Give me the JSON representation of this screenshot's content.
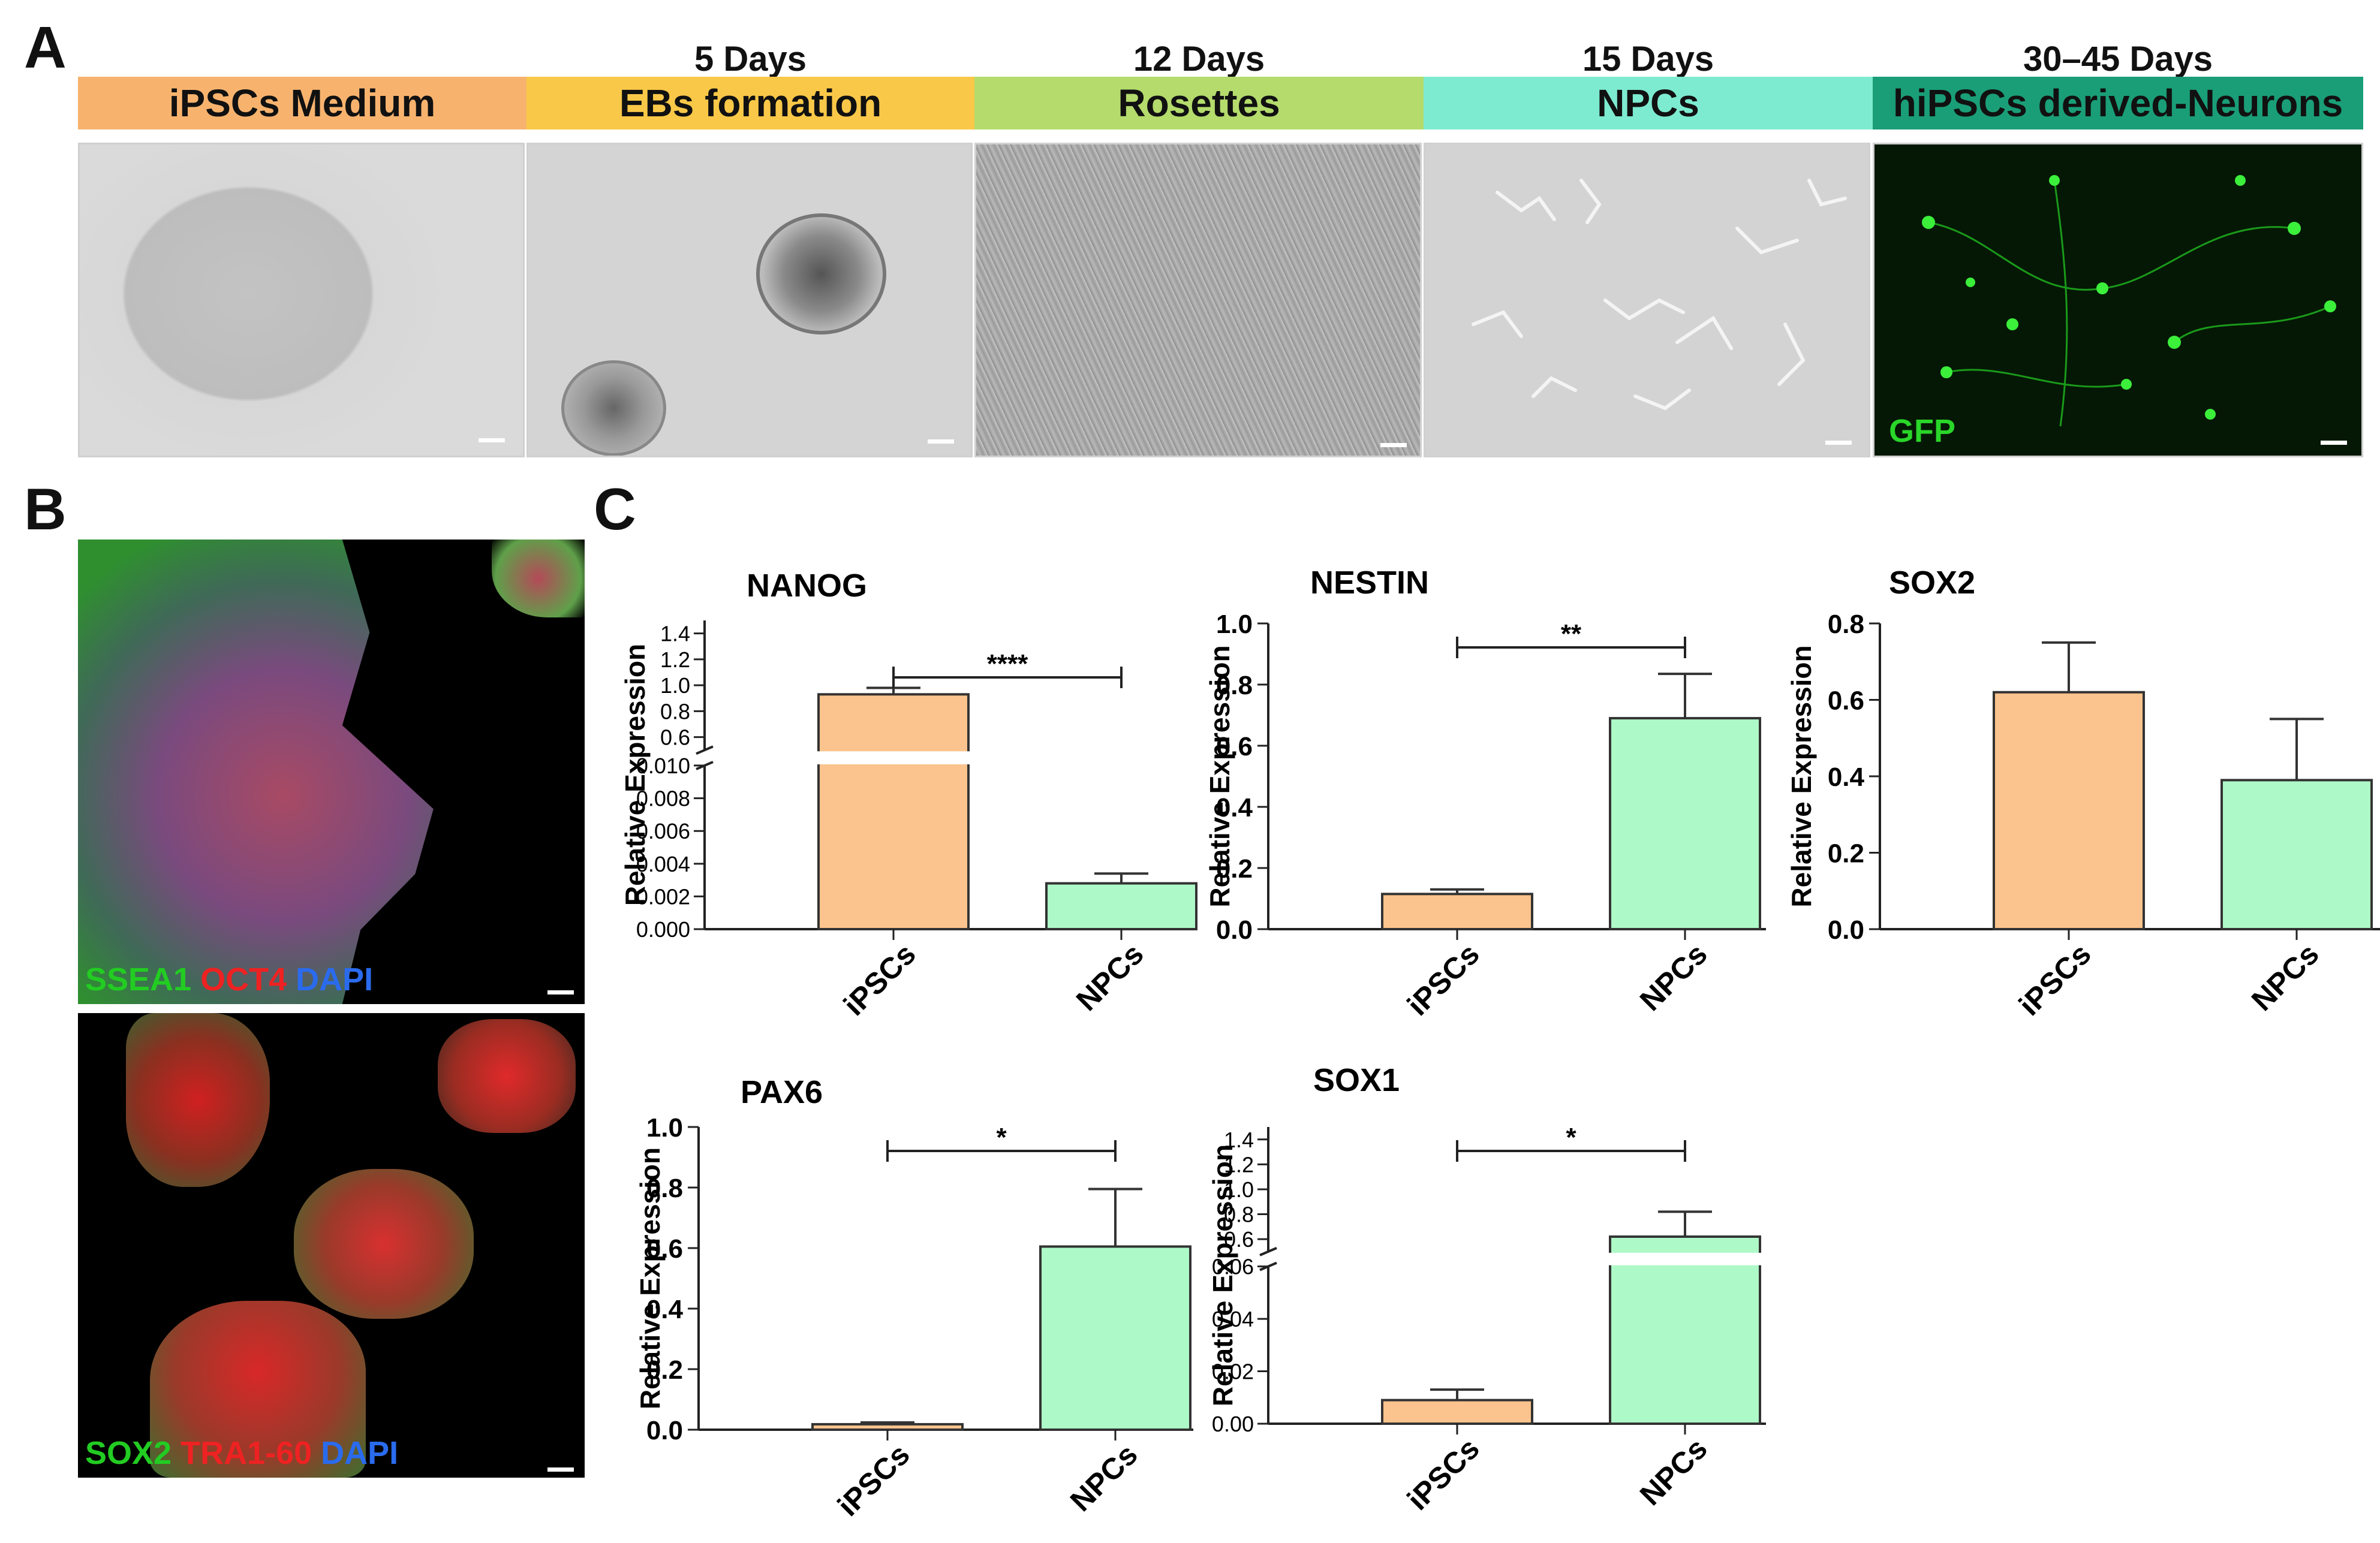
{
  "panels": {
    "A": "A",
    "B": "B",
    "C": "C"
  },
  "stages": [
    {
      "days": "",
      "label": "iPSCs Medium",
      "color": "#F7B36E"
    },
    {
      "days": "5 Days",
      "label": "EBs formation",
      "color": "#F9C848"
    },
    {
      "days": "12 Days",
      "label": "Rosettes",
      "color": "#B4DB6C"
    },
    {
      "days": "15 Days",
      "label": "NPCs",
      "color": "#7DEBD0"
    },
    {
      "days": "30–45 Days",
      "label": "hiPSCs derived-Neurons",
      "color": "#1A9E77"
    }
  ],
  "images": {
    "gfp_label": "GFP",
    "b_top_markers": [
      {
        "text": "SSEA1",
        "color": "#22CC22"
      },
      {
        "text": "OCT4",
        "color": "#EE2222"
      },
      {
        "text": "DAPI",
        "color": "#2A6BEE"
      }
    ],
    "b_bottom_markers": [
      {
        "text": "SOX2",
        "color": "#22CC22"
      },
      {
        "text": "TRA1-60",
        "color": "#EE2222"
      },
      {
        "text": "DAPI",
        "color": "#2A6BEE"
      }
    ]
  },
  "colors": {
    "ipsc": "#FBC38D",
    "npc": "#AEF9C8",
    "outline": "#333333"
  },
  "chart_data": [
    {
      "type": "bar",
      "title": "NANOG",
      "ylabel": "Relative Expression",
      "categories": [
        "iPSCs",
        "NPCs"
      ],
      "values": [
        0.93,
        0.0028
      ],
      "errors": [
        0.05,
        0.0006
      ],
      "broken_axis": {
        "lower": [
          0,
          0.01
        ],
        "upper": [
          0.5,
          1.5
        ]
      },
      "yticks_lower": [
        "0.000",
        "0.002",
        "0.004",
        "0.006",
        "0.008",
        "0.010"
      ],
      "yticks_upper": [
        "0.6",
        "0.8",
        "1.0",
        "1.2",
        "1.4"
      ],
      "significance": "****"
    },
    {
      "type": "bar",
      "title": "NESTIN",
      "ylabel": "Relative Expression",
      "categories": [
        "iPSCs",
        "NPCs"
      ],
      "values": [
        0.115,
        0.69
      ],
      "errors": [
        0.015,
        0.145
      ],
      "ylim": [
        0,
        1.0
      ],
      "yticks": [
        "0.0",
        "0.2",
        "0.4",
        "0.6",
        "0.8",
        "1.0"
      ],
      "significance": "**"
    },
    {
      "type": "bar",
      "title": "SOX2",
      "ylabel": "Relative Expression",
      "categories": [
        "iPSCs",
        "NPCs"
      ],
      "values": [
        0.62,
        0.39
      ],
      "errors": [
        0.13,
        0.16
      ],
      "ylim": [
        0,
        0.8
      ],
      "yticks": [
        "0.0",
        "0.2",
        "0.4",
        "0.6",
        "0.8"
      ],
      "significance": ""
    },
    {
      "type": "bar",
      "title": "PAX6",
      "ylabel": "Relative Expression",
      "categories": [
        "iPSCs",
        "NPCs"
      ],
      "values": [
        0.018,
        0.605
      ],
      "errors": [
        0.006,
        0.19
      ],
      "ylim": [
        0,
        1.0
      ],
      "yticks": [
        "0.0",
        "0.2",
        "0.4",
        "0.6",
        "0.8",
        "1.0"
      ],
      "significance": "*"
    },
    {
      "type": "bar",
      "title": "SOX1",
      "ylabel": "Relative Expression",
      "categories": [
        "iPSCs",
        "NPCs"
      ],
      "values": [
        0.009,
        0.62
      ],
      "errors": [
        0.004,
        0.2
      ],
      "broken_axis": {
        "lower": [
          0,
          0.06
        ],
        "upper": [
          0.5,
          1.5
        ]
      },
      "yticks_lower": [
        "0.00",
        "0.02",
        "0.04",
        "0.06"
      ],
      "yticks_upper": [
        "0.6",
        "0.8",
        "1.0",
        "1.2",
        "1.4"
      ],
      "significance": "*"
    }
  ]
}
